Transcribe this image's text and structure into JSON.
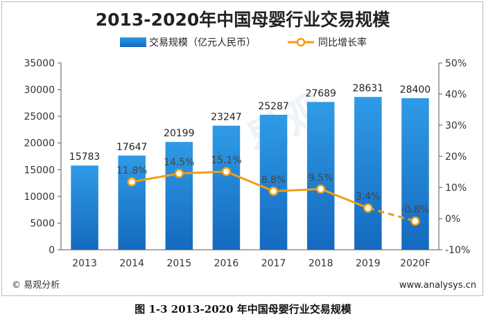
{
  "chart_data": {
    "type": "bar",
    "title": "2013-2020年中国母婴行业交易规模",
    "categories": [
      "2013",
      "2014",
      "2015",
      "2016",
      "2017",
      "2018",
      "2019",
      "2020F"
    ],
    "series": [
      {
        "name": "交易规模（亿元人民币）",
        "type": "bar",
        "axis": "left",
        "values": [
          15783,
          17647,
          20199,
          23247,
          25287,
          27689,
          28631,
          28400
        ]
      },
      {
        "name": "同比增长率",
        "type": "line",
        "axis": "right",
        "values": [
          null,
          11.8,
          14.5,
          15.1,
          8.8,
          9.5,
          3.4,
          -0.8
        ],
        "labels": [
          "",
          "11.8%",
          "14.5%",
          "15.1%",
          "8.8%",
          "9.5%",
          "3.4%",
          "-0.8%"
        ],
        "forecast_from_index": 6
      }
    ],
    "left_axis": {
      "ylim": [
        0,
        35000
      ],
      "ticks": [
        "0",
        "5000",
        "10000",
        "15000",
        "20000",
        "25000",
        "30000",
        "35000"
      ]
    },
    "right_axis": {
      "ylim": [
        -10,
        50
      ],
      "ticks": [
        "-10%",
        "0%",
        "10%",
        "20%",
        "30%",
        "40%",
        "50%"
      ]
    },
    "colors": {
      "bar": "#1a7fd4",
      "bar_light": "#2f9be6",
      "line": "#f39c12",
      "axis": "#555555"
    },
    "grid": false,
    "legend_position": "top"
  },
  "footer": {
    "source": "© 易观分析",
    "url": "www.analysys.cn"
  },
  "watermark": {
    "text": "易观"
  },
  "caption": "图 1-3  2013-2020 年中国母婴行业交易规模"
}
